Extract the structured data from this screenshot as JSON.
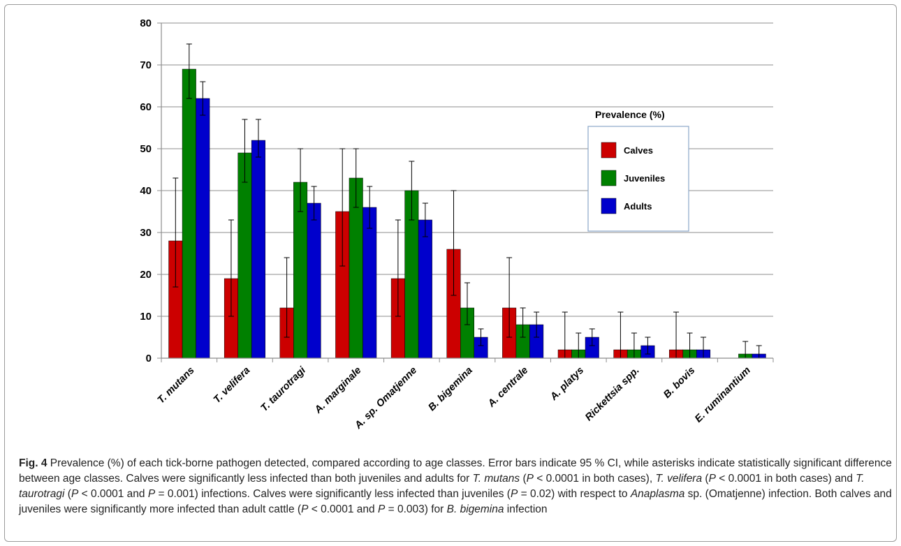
{
  "chart_data": {
    "type": "bar",
    "categories": [
      "T. mutans",
      "T. velifera",
      "T. taurotragi",
      "A. marginale",
      "A. sp. Omatjenne",
      "B. bigemina",
      "A. centrale",
      "A. platys",
      "Rickettsia spp.",
      "B. bovis",
      "E. ruminantium"
    ],
    "series": [
      {
        "name": "Calves",
        "color": "#cc0000",
        "values": [
          28,
          19,
          12,
          35,
          19,
          26,
          12,
          2,
          2,
          2,
          0
        ],
        "ci_upper": [
          43,
          33,
          24,
          50,
          33,
          40,
          24,
          11,
          11,
          11,
          null
        ],
        "ci_lower": [
          17,
          10,
          5,
          22,
          10,
          15,
          5,
          0,
          0,
          0,
          null
        ]
      },
      {
        "name": "Juveniles",
        "color": "#008000",
        "values": [
          69,
          49,
          42,
          43,
          40,
          12,
          8,
          2,
          2,
          2,
          1
        ],
        "ci_upper": [
          75,
          57,
          50,
          50,
          47,
          18,
          12,
          6,
          6,
          6,
          4
        ],
        "ci_lower": [
          62,
          42,
          35,
          36,
          33,
          8,
          5,
          0,
          0,
          0,
          0
        ]
      },
      {
        "name": "Adults",
        "color": "#0000cc",
        "values": [
          62,
          52,
          37,
          36,
          33,
          5,
          8,
          5,
          3,
          2,
          1
        ],
        "ci_upper": [
          66,
          57,
          41,
          41,
          37,
          7,
          11,
          7,
          5,
          5,
          3
        ],
        "ci_lower": [
          58,
          48,
          33,
          31,
          29,
          3,
          5,
          3,
          1,
          0,
          0
        ]
      }
    ],
    "ylim": [
      0,
      80
    ],
    "yticks": [
      0,
      10,
      20,
      30,
      40,
      50,
      60,
      70,
      80
    ],
    "grid": true,
    "legend": {
      "title": "Prevalence (%)",
      "placement": "right",
      "entries": [
        "Calves",
        "Juveniles",
        "Adults"
      ]
    },
    "xlabel": "",
    "ylabel": ""
  },
  "caption": {
    "fig_label": "Fig. 4",
    "parts": [
      {
        "t": " Prevalence (%) of each tick-borne pathogen detected, compared according to age classes. Error bars indicate 95 % CI, while asterisks indicate statistically significant difference between age classes. Calves were significantly less infected than both juveniles and adults for "
      },
      {
        "t": "T. mutans",
        "i": true
      },
      {
        "t": " ("
      },
      {
        "t": "P",
        "i": true
      },
      {
        "t": " < 0.0001 in both cases), "
      },
      {
        "t": "T. velifera",
        "i": true
      },
      {
        "t": " ("
      },
      {
        "t": "P",
        "i": true
      },
      {
        "t": " < 0.0001 in both cases) and "
      },
      {
        "t": "T. taurotragi",
        "i": true
      },
      {
        "t": " ("
      },
      {
        "t": "P",
        "i": true
      },
      {
        "t": " < 0.0001 and "
      },
      {
        "t": "P",
        "i": true
      },
      {
        "t": " = 0.001) infections. Calves were significantly less infected than juveniles ("
      },
      {
        "t": "P",
        "i": true
      },
      {
        "t": " = 0.02) with respect to "
      },
      {
        "t": "Anaplasma",
        "i": true
      },
      {
        "t": " sp. (Omatjenne) infection. Both calves and juveniles were significantly more infected than adult cattle ("
      },
      {
        "t": "P",
        "i": true
      },
      {
        "t": " < 0.0001 and "
      },
      {
        "t": "P",
        "i": true
      },
      {
        "t": " = 0.003) for "
      },
      {
        "t": "B. bigemina",
        "i": true
      },
      {
        "t": " infection"
      }
    ]
  }
}
